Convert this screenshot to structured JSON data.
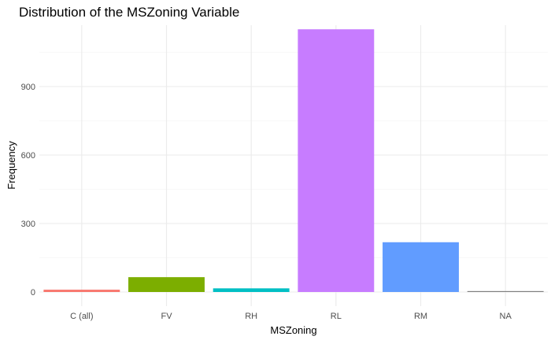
{
  "chart_data": {
    "type": "bar",
    "title": "Distribution of the MSZoning Variable",
    "xlabel": "MSZoning",
    "ylabel": "Frequency",
    "categories": [
      "C (all)",
      "FV",
      "RH",
      "RL",
      "RM",
      "NA"
    ],
    "values": [
      10,
      65,
      16,
      1151,
      218,
      4
    ],
    "colors": [
      "#F8766D",
      "#7CAE00",
      "#00BFC4",
      "#C77CFF",
      "#619CFF",
      "#808080"
    ],
    "y_ticks": [
      0,
      300,
      600,
      900
    ],
    "y_tick_labels": [
      "0",
      "300",
      "600",
      "900"
    ],
    "ylim": [
      0,
      1209
    ],
    "grid": true,
    "legend": "none"
  }
}
